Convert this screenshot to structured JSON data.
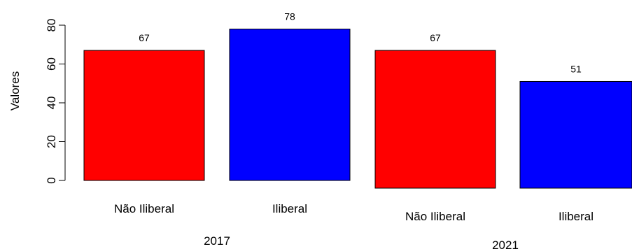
{
  "chart_data": {
    "type": "bar",
    "ylabel": "Valores",
    "ylim": [
      0,
      80
    ],
    "yticks": [
      0,
      20,
      40,
      60,
      80
    ],
    "grid": false,
    "bars": [
      {
        "group": "2017",
        "category": "Não Iliberal",
        "value": 67,
        "label": "67",
        "color": "#ff0000"
      },
      {
        "group": "2017",
        "category": "Iliberal",
        "value": 78,
        "label": "78",
        "color": "#0000ff"
      },
      {
        "group": "2021",
        "category": "Não Iliberal",
        "value": 67,
        "label": "67",
        "color": "#ff0000"
      },
      {
        "group": "2021",
        "category": "Iliberal",
        "value": 51,
        "label": "51",
        "color": "#0000ff"
      }
    ],
    "groups": [
      "2017",
      "2021"
    ]
  }
}
